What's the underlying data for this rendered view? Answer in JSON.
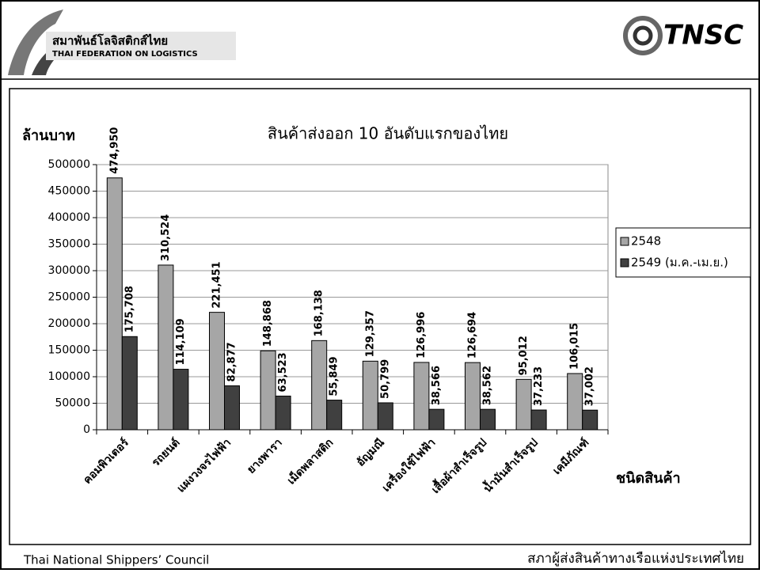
{
  "header": {
    "logo_left_thai": "สมาพันธ์โลจิสติกส์ไทย",
    "logo_left_en": "THAI FEDERATION ON LOGISTICS",
    "logo_right": "TNSC"
  },
  "footer": {
    "left": "Thai National Shippers’ Council",
    "right": "สภาผู้ส่งสินค้าทางเรือแห่งประเทศไทย"
  },
  "chart_data": {
    "type": "bar",
    "title": "สินค้าส่งออก 10 อันดับแรกของไทย",
    "y_label": "ล้านบาท",
    "x_label": "ชนิดสินค้า",
    "categories": [
      "คอมพิวเตอร์",
      "รถยนต์",
      "แผงวงจรไฟฟ้า",
      "ยางพารา",
      "เม็ดพลาสติก",
      "อัญมณี",
      "เครื่องใช้ไฟฟ้า",
      "เสื้อผ้าสำเร็จรูป",
      "น้ำมันสำเร็จรูป",
      "เคมีภัณฑ์"
    ],
    "series": [
      {
        "name": "2548",
        "color": "#a6a6a6",
        "values": [
          474950,
          310524,
          221451,
          148868,
          168138,
          129357,
          126996,
          126694,
          95012,
          106015
        ],
        "value_labels": [
          "474,950",
          "310,524",
          "221,451",
          "148,868",
          "168,138",
          "129,357",
          "126,996",
          "126,694",
          "95,012",
          "106,015"
        ]
      },
      {
        "name": "2549 (ม.ค.-เม.ย.)",
        "color": "#404040",
        "values": [
          175708,
          114109,
          82877,
          63523,
          55849,
          50799,
          38566,
          38562,
          37233,
          37002
        ],
        "value_labels": [
          "175,708",
          "114,109",
          "82,877",
          "63,523",
          "55,849",
          "50,799",
          "38,566",
          "38,562",
          "37,233",
          "37,002"
        ]
      }
    ],
    "ylim": [
      0,
      500000
    ],
    "yticks": [
      0,
      50000,
      100000,
      150000,
      200000,
      250000,
      300000,
      350000,
      400000,
      450000,
      500000
    ],
    "grid": true,
    "legend": "right"
  }
}
